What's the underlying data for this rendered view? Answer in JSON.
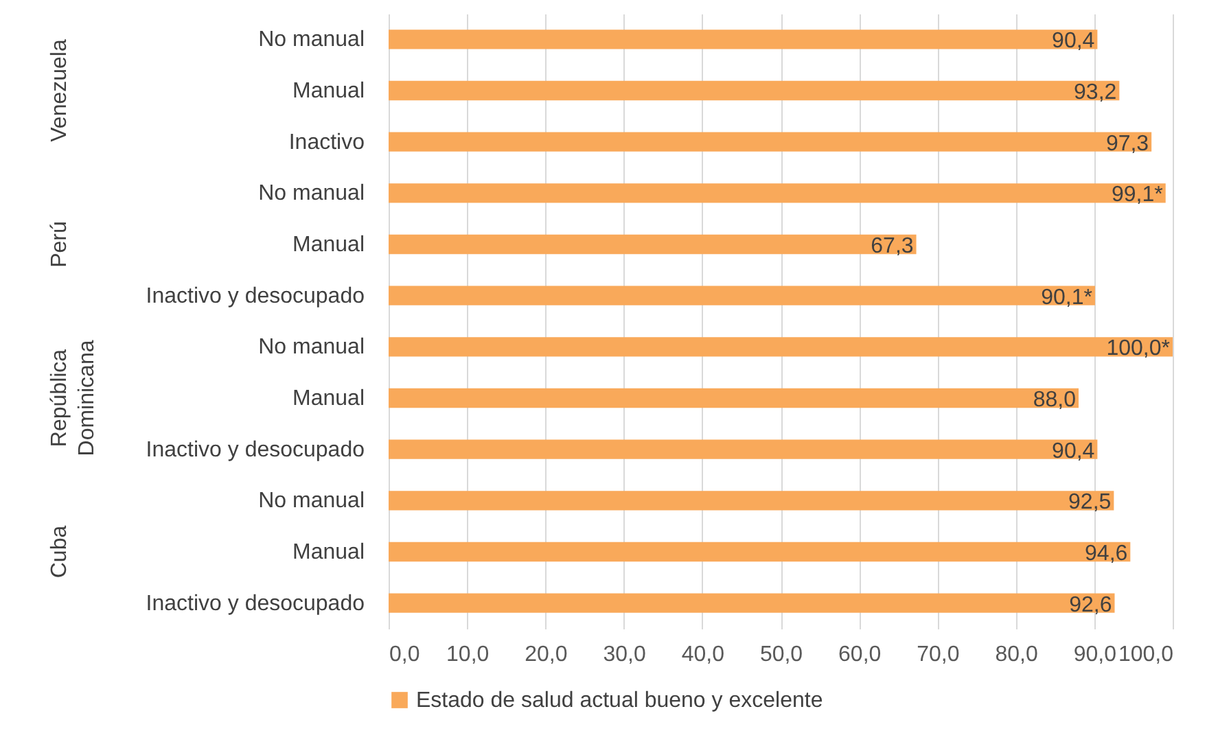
{
  "chart_data": {
    "type": "bar",
    "orientation": "horizontal",
    "categories": [
      "No manual",
      "Manual",
      "Inactivo",
      "No manual",
      "Manual",
      "Inactivo y desocupado",
      "No manual",
      "Manual",
      "Inactivo y desocupado",
      "No manual",
      "Manual",
      "Inactivo y desocupado"
    ],
    "series": [
      {
        "name": "Estado de salud actual bueno y excelente",
        "color": "#f9a95a",
        "values": [
          90.4,
          93.2,
          97.3,
          99.1,
          67.3,
          90.1,
          100.0,
          88.0,
          90.4,
          92.5,
          94.6,
          92.6
        ],
        "value_labels": [
          "90,4",
          "93,2",
          "97,3",
          "99,1*",
          "67,3",
          "90,1*",
          "100,0*",
          "88,0",
          "90,4",
          "92,5",
          "94,6",
          "92,6"
        ]
      }
    ],
    "annotations": [
      "Venezuela",
      "Perú",
      "República Dominicana",
      "Cuba"
    ],
    "xlim": [
      0,
      100
    ],
    "xticks": [
      {
        "value": 0,
        "label": "0,0"
      },
      {
        "value": 10,
        "label": "10,0"
      },
      {
        "value": 20,
        "label": "20,0"
      },
      {
        "value": 30,
        "label": "30,0"
      },
      {
        "value": 40,
        "label": "40,0"
      },
      {
        "value": 50,
        "label": "50,0"
      },
      {
        "value": 60,
        "label": "60,0"
      },
      {
        "value": 70,
        "label": "70,0"
      },
      {
        "value": 80,
        "label": "80,0"
      },
      {
        "value": 90,
        "label": "90,0"
      },
      {
        "value": 100,
        "label": "100,0"
      }
    ],
    "grid": "x",
    "legend": "bottom"
  }
}
